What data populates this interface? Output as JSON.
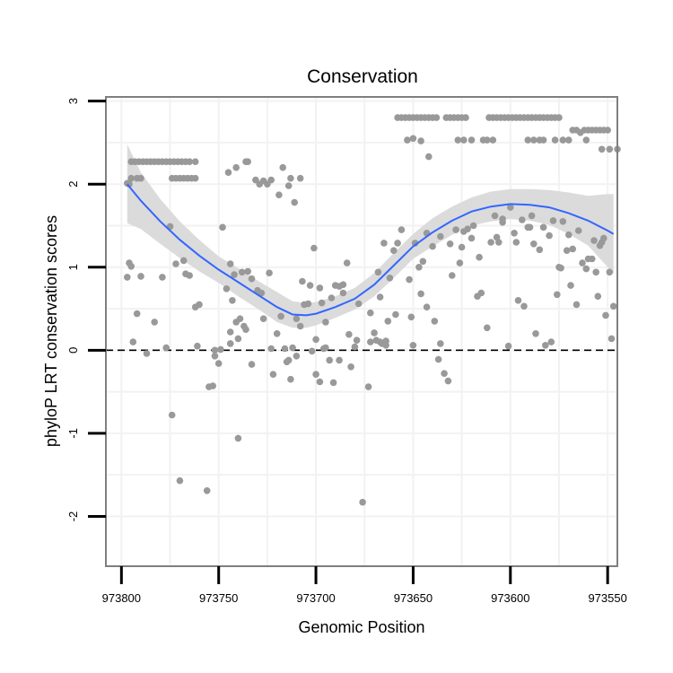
{
  "chart_data": {
    "type": "scatter",
    "title": "Conservation",
    "xlabel": "Genomic Position",
    "ylabel": "phyloP LRT conservation scores",
    "x_reversed": true,
    "xlim": [
      973808,
      973545
    ],
    "ylim": [
      -2.6,
      3.05
    ],
    "x_ticks": [
      973800,
      973750,
      973700,
      973650,
      973600,
      973550
    ],
    "x_tick_labels": [
      "973800",
      "973750",
      "973700",
      "973650",
      "973600",
      "973550"
    ],
    "y_ticks": [
      3,
      2,
      1,
      0,
      -1,
      -2
    ],
    "y_tick_labels": [
      "3",
      "2",
      "1",
      "0",
      "-1",
      "-2"
    ],
    "grid": true,
    "reference_line": {
      "y": 0,
      "style": "dashed"
    },
    "colors": {
      "points": "#999999",
      "smooth": "#3366ff",
      "ribbon": "#d9d9d9",
      "panel_border": "#7f7f7f",
      "grid": "#f2f2f2"
    },
    "points": [
      [
        973797,
        2.01
      ],
      [
        973797,
        0.88
      ],
      [
        973796,
        1.05
      ],
      [
        973795,
        1.01
      ],
      [
        973794,
        0.1
      ],
      [
        973792,
        0.44
      ],
      [
        973790,
        0.89
      ],
      [
        973787,
        -0.04
      ],
      [
        973783,
        0.34
      ],
      [
        973779,
        0.88
      ],
      [
        973777,
        0.03
      ],
      [
        973774,
        -0.78
      ],
      [
        973772,
        1.04
      ],
      [
        973770,
        -1.57
      ],
      [
        973767,
        0.92
      ],
      [
        973765,
        0.9
      ],
      [
        973761,
        0.05
      ],
      [
        973760,
        0.55
      ],
      [
        973756,
        -1.69
      ],
      [
        973755,
        -0.44
      ],
      [
        973753,
        -0.43
      ],
      [
        973746,
        0.74
      ],
      [
        973744,
        0.22
      ],
      [
        973742,
        0.91
      ],
      [
        973740,
        -1.06
      ],
      [
        973739,
        0.38
      ],
      [
        973735,
        0.95
      ],
      [
        973733,
        0.86
      ],
      [
        973730,
        0.72
      ],
      [
        973727,
        0.38
      ],
      [
        973724,
        0.93
      ],
      [
        973722,
        -0.29
      ],
      [
        973720,
        0.2
      ],
      [
        973716,
        0.02
      ],
      [
        973713,
        -0.35
      ],
      [
        973712,
        0.03
      ],
      [
        973710,
        -0.07
      ],
      [
        973706,
        0.55
      ],
      [
        973703,
        0.78
      ],
      [
        973701,
        1.23
      ],
      [
        973700,
        0.13
      ],
      [
        973698,
        -0.38
      ],
      [
        973695,
        0.03
      ],
      [
        973693,
        -0.12
      ],
      [
        973690,
        0.78
      ],
      [
        973688,
        0.77
      ],
      [
        973686,
        0.69
      ],
      [
        973684,
        1.05
      ],
      [
        973682,
        -0.2
      ],
      [
        973679,
        0.12
      ],
      [
        973676,
        -1.83
      ],
      [
        973673,
        -0.44
      ],
      [
        973670,
        0.21
      ],
      [
        973667,
        0.64
      ],
      [
        973665,
        1.29
      ],
      [
        973663,
        0.35
      ],
      [
        973660,
        1.2
      ],
      [
        973658,
        1.29
      ],
      [
        973656,
        1.45
      ],
      [
        973653,
        2.53
      ],
      [
        973650,
        0.06
      ],
      [
        973647,
        1.0
      ],
      [
        973645,
        1.07
      ],
      [
        973643,
        0.52
      ],
      [
        973640,
        1.25
      ],
      [
        973637,
        -0.11
      ],
      [
        973636,
        0.08
      ],
      [
        973634,
        -0.28
      ],
      [
        973632,
        -0.37
      ],
      [
        973628,
        1.45
      ],
      [
        973625,
        1.24
      ],
      [
        973622,
        1.46
      ],
      [
        973620,
        1.35
      ],
      [
        973617,
        0.65
      ],
      [
        973615,
        0.69
      ],
      [
        973612,
        0.27
      ],
      [
        973610,
        1.3
      ],
      [
        973607,
        1.36
      ],
      [
        973604,
        1.54
      ],
      [
        973601,
        0.05
      ],
      [
        973598,
        1.41
      ],
      [
        973596,
        0.6
      ],
      [
        973593,
        0.53
      ],
      [
        973590,
        1.48
      ],
      [
        973587,
        0.2
      ],
      [
        973585,
        1.21
      ],
      [
        973582,
        0.06
      ],
      [
        973579,
        0.1
      ],
      [
        973576,
        0.67
      ],
      [
        973574,
        0.99
      ],
      [
        973571,
        1.2
      ],
      [
        973569,
        0.78
      ],
      [
        973566,
        0.55
      ],
      [
        973563,
        1.05
      ],
      [
        973561,
        0.98
      ],
      [
        973558,
        1.1
      ],
      [
        973555,
        0.65
      ],
      [
        973553,
        1.3
      ],
      [
        973551,
        0.42
      ],
      [
        973549,
        0.94
      ],
      [
        973548,
        0.14
      ],
      [
        973547,
        0.53
      ],
      [
        973692,
        0.63
      ],
      [
        973691,
        -0.39
      ],
      [
        973697,
        0.57
      ],
      [
        973704,
        0.56
      ],
      [
        973718,
        0.41
      ],
      [
        973748,
        1.48
      ],
      [
        973768,
        1.08
      ],
      [
        973775,
        1.49
      ],
      [
        973762,
        0.52
      ],
      [
        973752,
        0.0
      ],
      [
        973750,
        -0.16
      ],
      [
        973744,
        0.08
      ],
      [
        973740,
        0.14
      ],
      [
        973737,
        0.29
      ],
      [
        973714,
        -0.12
      ],
      [
        973708,
        0.29
      ],
      [
        973702,
        -0.01
      ],
      [
        973700,
        -0.29
      ],
      [
        973696,
        0.02
      ],
      [
        973688,
        -0.12
      ],
      [
        973683,
        0.19
      ],
      [
        973680,
        0.04
      ],
      [
        973664,
        0.06
      ],
      [
        973659,
        0.43
      ],
      [
        973651,
        0.4
      ],
      [
        973646,
        0.68
      ],
      [
        973639,
        0.35
      ],
      [
        973630,
        0.9
      ],
      [
        973626,
        1.05
      ],
      [
        973616,
        1.12
      ],
      [
        973606,
        1.3
      ],
      [
        973597,
        1.3
      ],
      [
        973591,
        1.48
      ],
      [
        973588,
        1.28
      ],
      [
        973580,
        1.38
      ],
      [
        973575,
        1.0
      ],
      [
        973568,
        1.22
      ],
      [
        973560,
        1.1
      ],
      [
        973556,
        0.94
      ],
      [
        973552,
        1.35
      ],
      [
        973749,
        0.01
      ],
      [
        973744,
        1.04
      ],
      [
        973741,
        0.34
      ],
      [
        973736,
        0.25
      ],
      [
        973733,
        -0.17
      ],
      [
        973728,
        0.69
      ],
      [
        973723,
        0.02
      ],
      [
        973715,
        -0.14
      ],
      [
        973710,
        0.38
      ],
      [
        973707,
        0.83
      ],
      [
        973698,
        0.75
      ],
      [
        973695,
        0.34
      ],
      [
        973686,
        0.79
      ],
      [
        973678,
        0.56
      ],
      [
        973672,
        0.45
      ],
      [
        973668,
        0.94
      ],
      [
        973662,
        0.87
      ],
      [
        973652,
        0.85
      ],
      [
        973649,
        1.29
      ],
      [
        973643,
        1.41
      ],
      [
        973636,
        1.37
      ],
      [
        973631,
        1.28
      ],
      [
        973624,
        1.43
      ],
      [
        973619,
        1.5
      ],
      [
        973608,
        1.62
      ],
      [
        973604,
        1.58
      ],
      [
        973600,
        1.72
      ],
      [
        973594,
        1.57
      ],
      [
        973589,
        1.62
      ],
      [
        973583,
        1.48
      ],
      [
        973578,
        1.56
      ],
      [
        973573,
        1.55
      ],
      [
        973570,
        1.39
      ],
      [
        973565,
        1.44
      ],
      [
        973557,
        1.32
      ],
      [
        973554,
        1.26
      ],
      [
        973672,
        0.1
      ],
      [
        973669,
        0.12
      ],
      [
        973667,
        0.1
      ],
      [
        973666,
        0.08
      ],
      [
        973664,
        0.11
      ],
      [
        973752,
        -0.07
      ],
      [
        973743,
        0.6
      ],
      [
        973738,
        0.94
      ],
      [
        973711,
        1.78
      ],
      [
        973717,
        2.2
      ],
      [
        973723,
        2.05
      ],
      [
        973725,
        2.0
      ],
      [
        973727,
        2.04
      ],
      [
        973729,
        2.0
      ],
      [
        973719,
        1.87
      ],
      [
        973731,
        2.05
      ],
      [
        973735,
        2.27
      ],
      [
        973736,
        2.27
      ],
      [
        973741,
        2.2
      ],
      [
        973745,
        2.14
      ],
      [
        973762,
        2.27
      ],
      [
        973765,
        2.27
      ],
      [
        973767,
        2.27
      ],
      [
        973769,
        2.27
      ],
      [
        973771,
        2.27
      ],
      [
        973773,
        2.27
      ],
      [
        973775,
        2.27
      ],
      [
        973777,
        2.27
      ],
      [
        973779,
        2.27
      ],
      [
        973781,
        2.27
      ],
      [
        973783,
        2.27
      ],
      [
        973785,
        2.27
      ],
      [
        973787,
        2.27
      ],
      [
        973789,
        2.27
      ],
      [
        973791,
        2.27
      ],
      [
        973793,
        2.27
      ],
      [
        973795,
        2.27
      ],
      [
        973762,
        2.07
      ],
      [
        973764,
        2.07
      ],
      [
        973766,
        2.07
      ],
      [
        973768,
        2.07
      ],
      [
        973770,
        2.07
      ],
      [
        973772,
        2.07
      ],
      [
        973774,
        2.07
      ],
      [
        973790,
        2.07
      ],
      [
        973792,
        2.07
      ],
      [
        973796,
        2.0
      ],
      [
        973795,
        2.07
      ],
      [
        973713,
        2.07
      ],
      [
        973714,
        1.98
      ],
      [
        973708,
        2.07
      ],
      [
        973646,
        2.52
      ],
      [
        973642,
        2.33
      ],
      [
        973650,
        2.55
      ],
      [
        973627,
        2.53
      ],
      [
        973624,
        2.53
      ],
      [
        973620,
        2.53
      ],
      [
        973614,
        2.53
      ],
      [
        973612,
        2.53
      ],
      [
        973609,
        2.53
      ],
      [
        973591,
        2.53
      ],
      [
        973588,
        2.53
      ],
      [
        973585,
        2.53
      ],
      [
        973583,
        2.53
      ],
      [
        973577,
        2.53
      ],
      [
        973573,
        2.53
      ],
      [
        973570,
        2.53
      ],
      [
        973561,
        2.53
      ],
      [
        973553,
        2.42
      ],
      [
        973549,
        2.42
      ],
      [
        973545,
        2.42
      ],
      [
        973564,
        2.62
      ],
      [
        973562,
        2.65
      ],
      [
        973560,
        2.65
      ],
      [
        973558,
        2.65
      ],
      [
        973556,
        2.65
      ],
      [
        973554,
        2.65
      ],
      [
        973552,
        2.65
      ],
      [
        973550,
        2.65
      ],
      [
        973566,
        2.65
      ],
      [
        973568,
        2.65
      ],
      [
        973575,
        2.8
      ],
      [
        973577,
        2.8
      ],
      [
        973579,
        2.8
      ],
      [
        973581,
        2.8
      ],
      [
        973583,
        2.8
      ],
      [
        973585,
        2.8
      ],
      [
        973587,
        2.8
      ],
      [
        973589,
        2.8
      ],
      [
        973591,
        2.8
      ],
      [
        973593,
        2.8
      ],
      [
        973595,
        2.8
      ],
      [
        973597,
        2.8
      ],
      [
        973599,
        2.8
      ],
      [
        973601,
        2.8
      ],
      [
        973603,
        2.8
      ],
      [
        973605,
        2.8
      ],
      [
        973607,
        2.8
      ],
      [
        973609,
        2.8
      ],
      [
        973611,
        2.8
      ],
      [
        973623,
        2.8
      ],
      [
        973625,
        2.8
      ],
      [
        973627,
        2.8
      ],
      [
        973629,
        2.8
      ],
      [
        973631,
        2.8
      ],
      [
        973633,
        2.8
      ],
      [
        973638,
        2.8
      ],
      [
        973640,
        2.8
      ],
      [
        973642,
        2.8
      ],
      [
        973644,
        2.8
      ],
      [
        973646,
        2.8
      ],
      [
        973648,
        2.8
      ],
      [
        973650,
        2.8
      ],
      [
        973652,
        2.8
      ],
      [
        973654,
        2.8
      ],
      [
        973656,
        2.8
      ],
      [
        973658,
        2.8
      ]
    ],
    "smooth_line": [
      [
        973797,
        2.0
      ],
      [
        973790,
        1.8
      ],
      [
        973780,
        1.55
      ],
      [
        973770,
        1.33
      ],
      [
        973760,
        1.14
      ],
      [
        973750,
        0.97
      ],
      [
        973740,
        0.82
      ],
      [
        973730,
        0.67
      ],
      [
        973720,
        0.52
      ],
      [
        973712,
        0.43
      ],
      [
        973705,
        0.42
      ],
      [
        973700,
        0.44
      ],
      [
        973690,
        0.52
      ],
      [
        973680,
        0.62
      ],
      [
        973670,
        0.79
      ],
      [
        973660,
        1.02
      ],
      [
        973650,
        1.25
      ],
      [
        973640,
        1.42
      ],
      [
        973630,
        1.56
      ],
      [
        973620,
        1.67
      ],
      [
        973610,
        1.73
      ],
      [
        973600,
        1.76
      ],
      [
        973590,
        1.75
      ],
      [
        973580,
        1.72
      ],
      [
        973570,
        1.65
      ],
      [
        973560,
        1.56
      ],
      [
        973550,
        1.44
      ],
      [
        973547,
        1.4
      ]
    ],
    "ribbon_upper": [
      [
        973797,
        2.48
      ],
      [
        973790,
        2.14
      ],
      [
        973780,
        1.82
      ],
      [
        973770,
        1.55
      ],
      [
        973760,
        1.33
      ],
      [
        973750,
        1.13
      ],
      [
        973740,
        0.99
      ],
      [
        973730,
        0.84
      ],
      [
        973720,
        0.7
      ],
      [
        973712,
        0.59
      ],
      [
        973705,
        0.57
      ],
      [
        973700,
        0.58
      ],
      [
        973690,
        0.65
      ],
      [
        973680,
        0.75
      ],
      [
        973670,
        0.93
      ],
      [
        973660,
        1.17
      ],
      [
        973650,
        1.4
      ],
      [
        973640,
        1.59
      ],
      [
        973630,
        1.73
      ],
      [
        973620,
        1.84
      ],
      [
        973610,
        1.91
      ],
      [
        973600,
        1.94
      ],
      [
        973590,
        1.94
      ],
      [
        973580,
        1.93
      ],
      [
        973570,
        1.9
      ],
      [
        973560,
        1.86
      ],
      [
        973550,
        1.88
      ],
      [
        973547,
        1.88
      ]
    ],
    "ribbon_lower": [
      [
        973797,
        1.53
      ],
      [
        973790,
        1.46
      ],
      [
        973780,
        1.28
      ],
      [
        973770,
        1.11
      ],
      [
        973760,
        0.95
      ],
      [
        973750,
        0.81
      ],
      [
        973740,
        0.65
      ],
      [
        973730,
        0.5
      ],
      [
        973720,
        0.34
      ],
      [
        973712,
        0.27
      ],
      [
        973705,
        0.27
      ],
      [
        973700,
        0.3
      ],
      [
        973690,
        0.39
      ],
      [
        973680,
        0.49
      ],
      [
        973670,
        0.65
      ],
      [
        973660,
        0.87
      ],
      [
        973650,
        1.1
      ],
      [
        973640,
        1.25
      ],
      [
        973630,
        1.39
      ],
      [
        973620,
        1.5
      ],
      [
        973610,
        1.55
      ],
      [
        973600,
        1.58
      ],
      [
        973590,
        1.56
      ],
      [
        973580,
        1.51
      ],
      [
        973570,
        1.4
      ],
      [
        973560,
        1.26
      ],
      [
        973550,
        1.0
      ],
      [
        973547,
        0.92
      ]
    ]
  }
}
